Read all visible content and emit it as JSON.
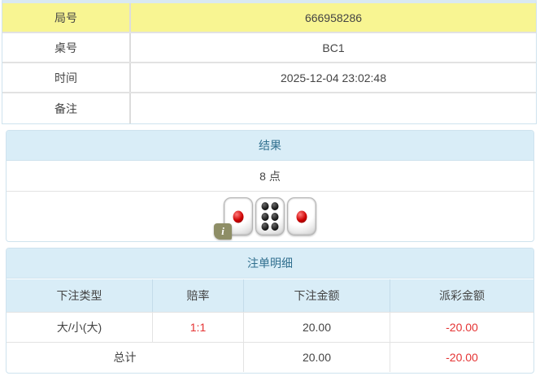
{
  "info_table": {
    "rows": [
      {
        "label": "局号",
        "value": "666958286"
      },
      {
        "label": "桌号",
        "value": "BC1"
      },
      {
        "label": "时间",
        "value": "2025-12-04 23:02:48"
      },
      {
        "label": "备注",
        "value": ""
      }
    ]
  },
  "result_panel": {
    "title": "结果",
    "points": "8 点",
    "dice": [
      1,
      6,
      1
    ],
    "info_icon_glyph": "i"
  },
  "bets_panel": {
    "title": "注单明细",
    "columns": [
      "下注类型",
      "赔率",
      "下注金额",
      "派彩金额"
    ],
    "rows": [
      {
        "type": "大/小(大)",
        "odds": "1:1",
        "bet": "20.00",
        "payout": "-20.00"
      }
    ],
    "total": {
      "label": "总计",
      "bet": "20.00",
      "payout": "-20.00"
    }
  },
  "colors": {
    "highlight_yellow": "#f8f592",
    "panel_blue_bg": "#d9edf7",
    "panel_border": "#cfe3ee",
    "header_text": "#31708f",
    "negative_red": "#e53333",
    "text": "#444444"
  }
}
